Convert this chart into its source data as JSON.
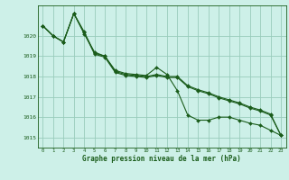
{
  "title": "Graphe pression niveau de la mer (hPa)",
  "background_color": "#cdf0e8",
  "plot_bg_color": "#cdf0e8",
  "grid_color": "#99ccbb",
  "line_color": "#1a5c1a",
  "marker_color": "#1a5c1a",
  "xlim": [
    -0.5,
    23.5
  ],
  "ylim": [
    1014.5,
    1021.5
  ],
  "yticks": [
    1015,
    1016,
    1017,
    1018,
    1019,
    1020
  ],
  "xticks": [
    0,
    1,
    2,
    3,
    4,
    5,
    6,
    7,
    8,
    9,
    10,
    11,
    12,
    13,
    14,
    15,
    16,
    17,
    18,
    19,
    20,
    21,
    22,
    23
  ],
  "series": [
    [
      1020.5,
      1020.0,
      1019.7,
      1021.1,
      1020.1,
      1019.2,
      1019.0,
      1018.3,
      1018.15,
      1018.1,
      1018.05,
      1018.45,
      1018.1,
      1017.3,
      1016.1,
      1015.85,
      1015.85,
      1016.0,
      1016.0,
      1015.85,
      1015.7,
      1015.6,
      1015.35,
      1015.1
    ],
    [
      1020.5,
      1020.0,
      1019.7,
      1021.1,
      1020.2,
      1019.15,
      1019.0,
      1018.25,
      1018.1,
      1018.05,
      1018.0,
      1018.1,
      1018.0,
      1018.0,
      1017.55,
      1017.35,
      1017.2,
      1017.0,
      1016.85,
      1016.7,
      1016.5,
      1016.35,
      1016.15,
      1015.1
    ],
    [
      1020.5,
      1020.0,
      1019.7,
      1021.1,
      1020.15,
      1019.1,
      1018.95,
      1018.2,
      1018.05,
      1018.0,
      1017.95,
      1018.05,
      1017.95,
      1017.95,
      1017.5,
      1017.3,
      1017.15,
      1016.95,
      1016.8,
      1016.65,
      1016.45,
      1016.3,
      1016.1,
      1015.1
    ]
  ]
}
